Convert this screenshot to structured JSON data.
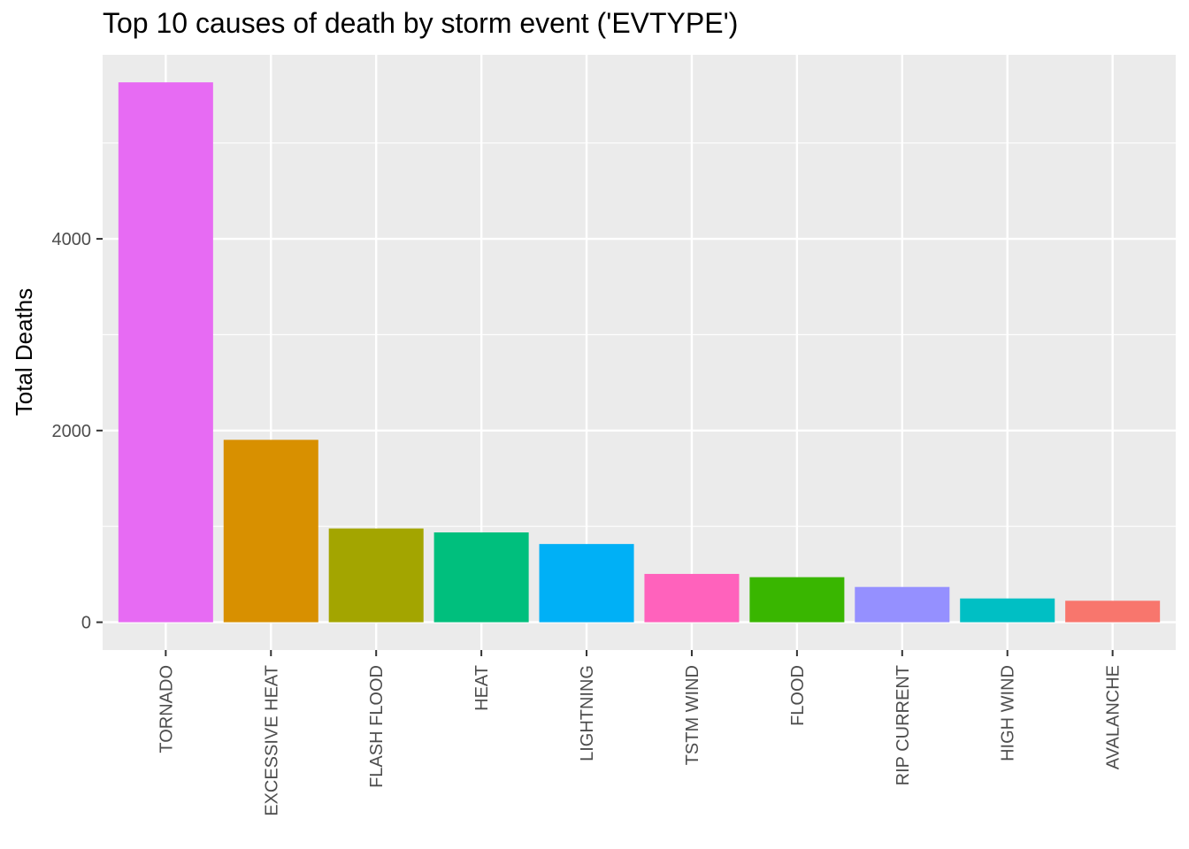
{
  "chart_data": {
    "type": "bar",
    "title": "Top 10 causes of death by storm event ('EVTYPE')",
    "xlabel": "",
    "ylabel": "Total Deaths",
    "categories": [
      "TORNADO",
      "EXCESSIVE HEAT",
      "FLASH FLOOD",
      "HEAT",
      "LIGHTNING",
      "TSTM WIND",
      "FLOOD",
      "RIP CURRENT",
      "HIGH WIND",
      "AVALANCHE"
    ],
    "values": [
      5633,
      1903,
      978,
      937,
      816,
      504,
      470,
      368,
      248,
      224
    ],
    "colors": [
      "#E76BF3",
      "#D89000",
      "#A3A500",
      "#00BF7D",
      "#00B0F6",
      "#FF62BC",
      "#39B600",
      "#9590FF",
      "#00BFC4",
      "#F8766D"
    ],
    "ylim": [
      -290,
      5920
    ],
    "yticks": [
      0,
      2000,
      4000
    ],
    "grid": true,
    "panel_background": "#EBEBEB",
    "legend": "none"
  }
}
